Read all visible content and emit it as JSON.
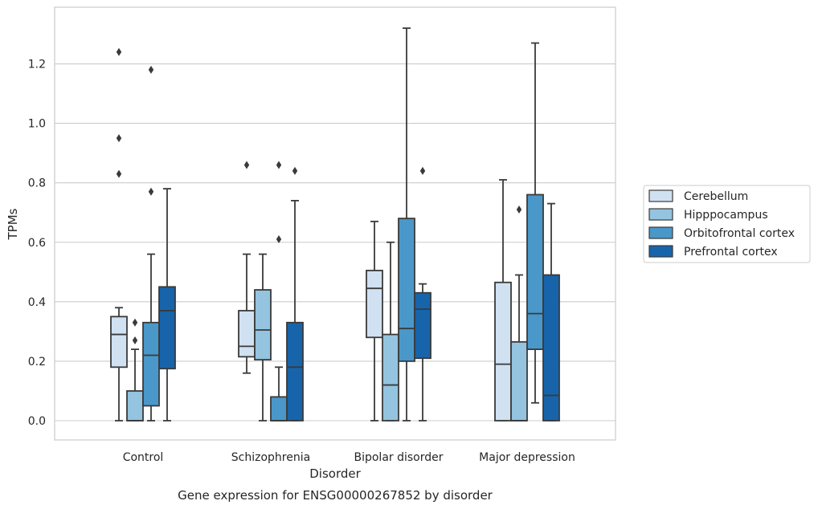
{
  "chart_data": {
    "type": "box",
    "title": "",
    "caption": "Gene expression for ENSG00000267852 by disorder",
    "xlabel": "Disorder",
    "ylabel": "TPMs",
    "ylim": [
      -0.065,
      1.39
    ],
    "yticks": [
      "0.0",
      "0.2",
      "0.4",
      "0.6",
      "0.8",
      "1.0",
      "1.2"
    ],
    "grid": "horizontal",
    "legend_position": "right",
    "categories": [
      "Control",
      "Schizophrenia",
      "Bipolar disorder",
      "Major depression"
    ],
    "series": [
      {
        "name": "Cerebellum",
        "color": "#d0e1f2",
        "boxes": [
          {
            "whisker_low": 0.0,
            "q1": 0.18,
            "median": 0.29,
            "q3": 0.35,
            "whisker_high": 0.38,
            "outliers": [
              0.83,
              0.95,
              1.24
            ]
          },
          {
            "whisker_low": 0.16,
            "q1": 0.215,
            "median": 0.25,
            "q3": 0.37,
            "whisker_high": 0.56,
            "outliers": [
              0.86
            ]
          },
          {
            "whisker_low": 0.0,
            "q1": 0.28,
            "median": 0.445,
            "q3": 0.505,
            "whisker_high": 0.67,
            "outliers": []
          },
          {
            "whisker_low": 0.0,
            "q1": 0.0,
            "median": 0.19,
            "q3": 0.465,
            "whisker_high": 0.81,
            "outliers": []
          }
        ]
      },
      {
        "name": "Hipppocampus",
        "color": "#94c4df",
        "boxes": [
          {
            "whisker_low": 0.0,
            "q1": 0.0,
            "median": 0.0,
            "q3": 0.1,
            "whisker_high": 0.24,
            "outliers": [
              0.27,
              0.33
            ]
          },
          {
            "whisker_low": 0.0,
            "q1": 0.205,
            "median": 0.305,
            "q3": 0.44,
            "whisker_high": 0.56,
            "outliers": []
          },
          {
            "whisker_low": 0.0,
            "q1": 0.0,
            "median": 0.12,
            "q3": 0.29,
            "whisker_high": 0.6,
            "outliers": []
          },
          {
            "whisker_low": 0.0,
            "q1": 0.0,
            "median": 0.0,
            "q3": 0.265,
            "whisker_high": 0.49,
            "outliers": [
              0.71
            ]
          }
        ]
      },
      {
        "name": "Orbitofrontal cortex",
        "color": "#4a98c9",
        "boxes": [
          {
            "whisker_low": 0.0,
            "q1": 0.05,
            "median": 0.22,
            "q3": 0.33,
            "whisker_high": 0.56,
            "outliers": [
              0.77,
              1.18
            ]
          },
          {
            "whisker_low": 0.0,
            "q1": 0.0,
            "median": 0.0,
            "q3": 0.08,
            "whisker_high": 0.18,
            "outliers": [
              0.61,
              0.86
            ]
          },
          {
            "whisker_low": 0.0,
            "q1": 0.2,
            "median": 0.31,
            "q3": 0.68,
            "whisker_high": 1.32,
            "outliers": []
          },
          {
            "whisker_low": 0.06,
            "q1": 0.24,
            "median": 0.36,
            "q3": 0.76,
            "whisker_high": 1.27,
            "outliers": []
          }
        ]
      },
      {
        "name": "Prefrontal cortex",
        "color": "#1764ab",
        "boxes": [
          {
            "whisker_low": 0.0,
            "q1": 0.175,
            "median": 0.37,
            "q3": 0.45,
            "whisker_high": 0.78,
            "outliers": []
          },
          {
            "whisker_low": 0.0,
            "q1": 0.0,
            "median": 0.18,
            "q3": 0.33,
            "whisker_high": 0.74,
            "outliers": [
              0.84
            ]
          },
          {
            "whisker_low": 0.0,
            "q1": 0.21,
            "median": 0.375,
            "q3": 0.43,
            "whisker_high": 0.46,
            "outliers": [
              0.84
            ]
          },
          {
            "whisker_low": 0.0,
            "q1": 0.0,
            "median": 0.085,
            "q3": 0.49,
            "whisker_high": 0.73,
            "outliers": []
          }
        ]
      }
    ]
  }
}
